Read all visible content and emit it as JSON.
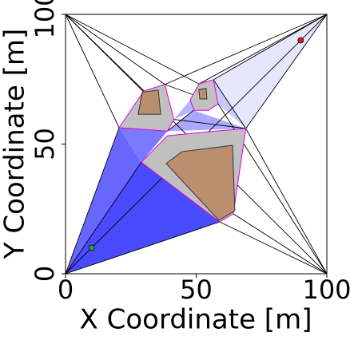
{
  "chart_data": {
    "type": "scatter",
    "xlabel": "X Coordinate [m]",
    "ylabel": "Y Coordinate [m]",
    "xlim": [
      0,
      100
    ],
    "ylim": [
      0,
      100
    ],
    "xticks": [
      0,
      50,
      100
    ],
    "yticks": [
      0,
      50,
      100
    ],
    "triangles": [
      {
        "color": "#4a4aff",
        "points": [
          [
            0,
            0
          ],
          [
            29,
            43
          ],
          [
            59,
            20
          ]
        ]
      },
      {
        "color": "#6767ff",
        "points": [
          [
            0,
            0
          ],
          [
            20.5,
            56.3
          ],
          [
            29,
            43
          ]
        ]
      },
      {
        "color": "#7a7aff",
        "points": [
          [
            20.5,
            56.3
          ],
          [
            29,
            43
          ],
          [
            39,
            55
          ]
        ]
      },
      {
        "color": "#a9a9ff",
        "points": [
          [
            39,
            55
          ],
          [
            49,
            63
          ],
          [
            69,
            56
          ]
        ]
      },
      {
        "color": "#b4b4ff",
        "points": [
          [
            41.5,
            59.5
          ],
          [
            47.7,
            67
          ],
          [
            49,
            63
          ]
        ]
      },
      {
        "color": "#c8c8ff",
        "points": [
          [
            56.6,
            74.8
          ],
          [
            58.4,
            65.5
          ],
          [
            69,
            56
          ]
        ]
      },
      {
        "color": "#e6e6ff",
        "points": [
          [
            56.6,
            74.8
          ],
          [
            100,
            100
          ],
          [
            69,
            56
          ]
        ]
      }
    ],
    "obstacles": [
      {
        "inflated": [
          [
            20.5,
            56.3
          ],
          [
            30,
            70.5
          ],
          [
            38,
            73
          ],
          [
            41.5,
            59.5
          ],
          [
            39,
            55
          ]
        ],
        "core": [
          [
            29.4,
            70
          ],
          [
            35.5,
            70.8
          ],
          [
            36.4,
            61.5
          ],
          [
            27.8,
            61.5
          ]
        ]
      },
      {
        "inflated": [
          [
            47.7,
            67
          ],
          [
            51.1,
            73.2
          ],
          [
            56.6,
            74.8
          ],
          [
            58.4,
            65.5
          ],
          [
            54.7,
            63
          ],
          [
            49.2,
            63
          ]
        ],
        "core": [
          [
            51,
            71
          ],
          [
            53.8,
            71.5
          ],
          [
            54.1,
            67.4
          ],
          [
            51.4,
            67.4
          ]
        ]
      },
      {
        "inflated": [
          [
            29,
            43
          ],
          [
            39,
            53.2
          ],
          [
            55.4,
            54.8
          ],
          [
            69,
            56
          ],
          [
            64.2,
            23.1
          ],
          [
            59,
            20
          ]
        ],
        "core": [
          [
            38.5,
            42.5
          ],
          [
            44.6,
            47.1
          ],
          [
            63.9,
            49.5
          ],
          [
            64.8,
            24.3
          ],
          [
            58.7,
            20.6
          ]
        ]
      }
    ],
    "edges": [
      [
        0,
        100,
        30,
        70.5
      ],
      [
        0,
        100,
        38,
        73
      ],
      [
        0,
        100,
        51.1,
        73.2
      ],
      [
        0,
        100,
        20.5,
        56.3
      ],
      [
        100,
        100,
        38,
        73
      ],
      [
        100,
        100,
        51.1,
        73.2
      ],
      [
        100,
        100,
        69,
        56
      ],
      [
        100,
        100,
        56.6,
        74.8
      ],
      [
        100,
        0,
        69,
        56
      ],
      [
        100,
        0,
        64.2,
        23.1
      ],
      [
        100,
        0,
        59,
        20
      ],
      [
        100,
        0,
        58.4,
        65.5
      ],
      [
        0,
        0,
        20.5,
        56.3
      ],
      [
        0,
        0,
        29,
        43
      ],
      [
        0,
        0,
        59,
        20
      ],
      [
        38,
        73,
        58.4,
        65.5
      ],
      [
        41.5,
        59.5,
        69,
        56
      ],
      [
        39,
        55,
        49,
        63
      ],
      [
        56.6,
        74.8,
        69,
        56
      ],
      [
        0,
        100,
        100,
        0
      ],
      [
        0,
        0,
        100,
        100
      ]
    ],
    "markers": [
      {
        "x": 10,
        "y": 10,
        "color": "#2ca02c"
      },
      {
        "x": 90,
        "y": 90,
        "color": "#e41a1c"
      }
    ],
    "obstacle_color": "#c0c0c0",
    "core_color": "#bb8e6e",
    "border_color": "#e000e0"
  }
}
